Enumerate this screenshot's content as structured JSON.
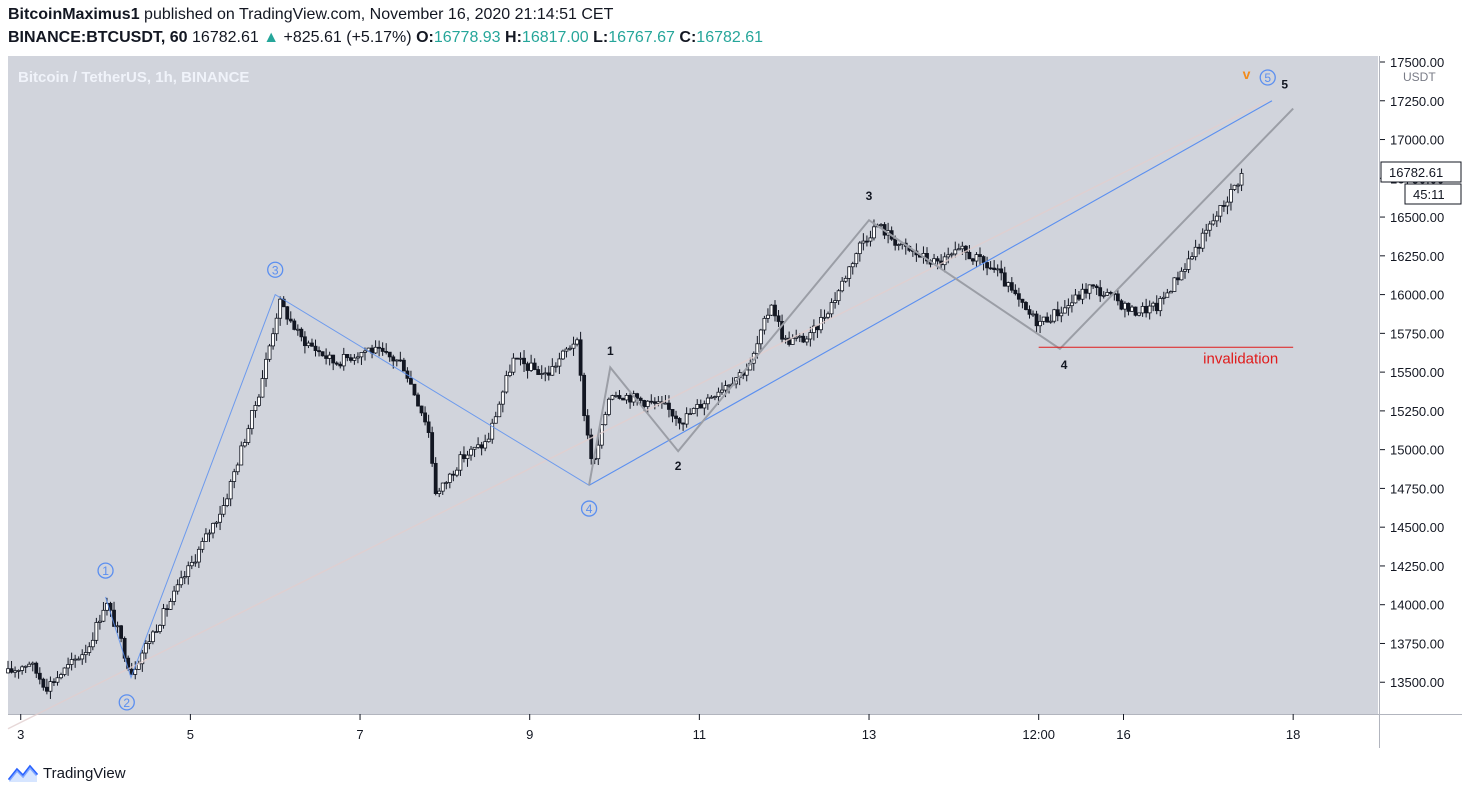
{
  "header": {
    "author": "BitcoinMaximus1",
    "published_text": "published on TradingView.com, November 16, 2020 21:14:51 CET",
    "symbol": "BINANCE:BTCUSDT, 60",
    "last": "16782.61",
    "change": "+825.61 (+5.17%)",
    "o_label": "O:",
    "o_value": "16778.93",
    "h_label": "H:",
    "h_value": "16817.00",
    "l_label": "L:",
    "l_value": "16767.67",
    "c_label": "C:",
    "c_value": "16782.61"
  },
  "chart_title": "Bitcoin / TetherUS, 1h, BINANCE",
  "currency_label": "USDT",
  "last_price_label": "16782.61",
  "countdown_label": "45:11",
  "footer_brand": "TradingView",
  "colors": {
    "background": "#d1d4dc",
    "candle": "#131722",
    "wave_line": "#5b8ff0",
    "channel_line": "#9b9ea6",
    "invalidation": "#e01b1b",
    "accent_orange": "#f28b1c",
    "up": "#26a69a"
  },
  "chart_data": {
    "type": "candlestick",
    "ylim": [
      13250,
      17500
    ],
    "xlim": [
      2.85,
      19.0
    ],
    "x_ticks": [
      {
        "x": 3,
        "label": "3"
      },
      {
        "x": 5,
        "label": "5"
      },
      {
        "x": 7,
        "label": "7"
      },
      {
        "x": 9,
        "label": "9"
      },
      {
        "x": 11,
        "label": "11"
      },
      {
        "x": 13,
        "label": "13"
      },
      {
        "x": 15,
        "label": "12:00"
      },
      {
        "x": 16,
        "label": "16"
      },
      {
        "x": 18,
        "label": "18"
      }
    ],
    "y_ticks": [
      13500,
      13750,
      14000,
      14250,
      14500,
      14750,
      15000,
      15250,
      15500,
      15750,
      16000,
      16250,
      16500,
      16750,
      17000,
      17250,
      17500
    ],
    "price_path": [
      [
        2.85,
        13560
      ],
      [
        3.1,
        13630
      ],
      [
        3.3,
        13470
      ],
      [
        3.6,
        13620
      ],
      [
        3.8,
        13730
      ],
      [
        4.0,
        14020
      ],
      [
        4.15,
        13820
      ],
      [
        4.3,
        13560
      ],
      [
        4.6,
        13860
      ],
      [
        5.0,
        14250
      ],
      [
        5.4,
        14650
      ],
      [
        5.8,
        15350
      ],
      [
        6.05,
        15950
      ],
      [
        6.3,
        15720
      ],
      [
        6.7,
        15560
      ],
      [
        7.1,
        15650
      ],
      [
        7.5,
        15560
      ],
      [
        7.8,
        15150
      ],
      [
        7.9,
        14700
      ],
      [
        8.2,
        14950
      ],
      [
        8.5,
        15050
      ],
      [
        8.8,
        15580
      ],
      [
        9.2,
        15480
      ],
      [
        9.55,
        15720
      ],
      [
        9.65,
        15200
      ],
      [
        9.75,
        14880
      ],
      [
        9.95,
        15380
      ],
      [
        10.3,
        15320
      ],
      [
        10.6,
        15270
      ],
      [
        10.8,
        15190
      ],
      [
        11.2,
        15380
      ],
      [
        11.6,
        15540
      ],
      [
        11.85,
        15950
      ],
      [
        12.0,
        15700
      ],
      [
        12.3,
        15720
      ],
      [
        12.6,
        15980
      ],
      [
        12.9,
        16330
      ],
      [
        13.1,
        16450
      ],
      [
        13.4,
        16300
      ],
      [
        13.8,
        16200
      ],
      [
        14.1,
        16280
      ],
      [
        14.5,
        16150
      ],
      [
        14.85,
        15890
      ],
      [
        15.0,
        15820
      ],
      [
        15.3,
        15910
      ],
      [
        15.6,
        16050
      ],
      [
        15.9,
        15970
      ],
      [
        16.1,
        15890
      ],
      [
        16.4,
        15920
      ],
      [
        16.8,
        16250
      ],
      [
        17.2,
        16600
      ],
      [
        17.4,
        16782
      ]
    ],
    "big_wave": [
      {
        "x": 4.0,
        "y": 14050,
        "label": "1",
        "lx": 4.0,
        "ly": 14220
      },
      {
        "x": 4.3,
        "y": 13530,
        "label": "2",
        "lx": 4.25,
        "ly": 13370
      },
      {
        "x": 6.0,
        "y": 16000,
        "label": "3",
        "lx": 6.0,
        "ly": 16160
      },
      {
        "x": 9.7,
        "y": 14770,
        "label": "4",
        "lx": 9.7,
        "ly": 14620
      },
      {
        "x": 17.75,
        "y": 17250,
        "label": "5",
        "lx": 17.7,
        "ly": 17400
      }
    ],
    "small_wave": [
      {
        "x": 9.7,
        "y": 14770
      },
      {
        "x": 9.95,
        "y": 15530,
        "label": "1",
        "lx": 9.95,
        "ly": 15610
      },
      {
        "x": 10.75,
        "y": 14990,
        "label": "2",
        "lx": 10.75,
        "ly": 14870
      },
      {
        "x": 13.0,
        "y": 16480,
        "label": "3",
        "lx": 13.0,
        "ly": 16610
      },
      {
        "x": 15.25,
        "y": 15650,
        "label": "4",
        "lx": 15.3,
        "ly": 15520
      },
      {
        "x": 18.0,
        "y": 17200,
        "label": "5",
        "lx": 17.9,
        "ly": 17330
      }
    ],
    "trendlines": [
      {
        "x1": 2.85,
        "y1": 13200,
        "x2": 17.7,
        "y2": 17250,
        "style": "faint"
      },
      {
        "x1": 9.7,
        "y1": 14770,
        "x2": 17.75,
        "y2": 17250,
        "style": "wave"
      }
    ],
    "invalidation": {
      "y": 15660,
      "x1": 15.0,
      "x2": 18.0,
      "label": "invalidation"
    },
    "orange_marker": {
      "x": 17.45,
      "y": 17390,
      "label": "v"
    }
  }
}
